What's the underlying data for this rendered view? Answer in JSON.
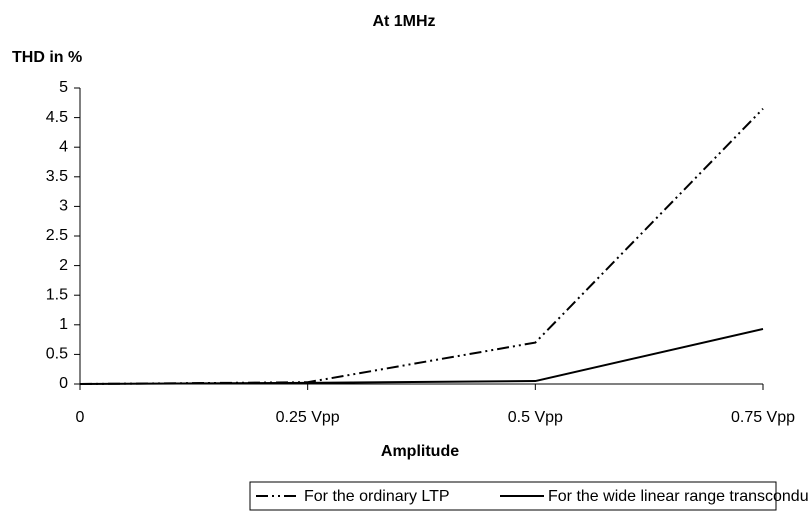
{
  "chart_data": {
    "type": "line",
    "title": "At 1MHz",
    "y_label": "THD in %",
    "x_label": "Amplitude",
    "categories": [
      "0",
      "0.25 Vpp",
      "0.5 Vpp",
      "0.75 Vpp"
    ],
    "series": [
      {
        "name": "For the ordinary LTP",
        "color": "#000000",
        "dash": "dash-dot-dot",
        "values": [
          0,
          0.03,
          0.7,
          4.65
        ]
      },
      {
        "name": "For the wide linear range transconductor",
        "color": "#000000",
        "dash": "solid",
        "values": [
          0,
          0.02,
          0.05,
          0.93
        ]
      }
    ],
    "ylim": [
      0,
      5
    ],
    "yticks": [
      0,
      0.5,
      1,
      1.5,
      2,
      2.5,
      3,
      3.5,
      4,
      4.5,
      5
    ],
    "grid": false,
    "legend": "bottom"
  }
}
